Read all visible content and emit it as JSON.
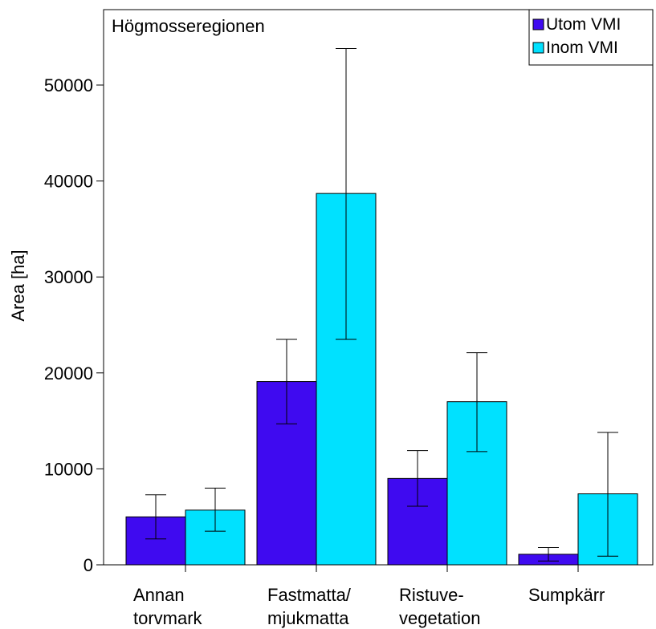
{
  "chart_data": {
    "type": "bar",
    "title": "Högmosseregionen",
    "ylabel": "Area [ha]",
    "xlabel": "",
    "ylim": [
      0,
      58000
    ],
    "yticks": [
      0,
      10000,
      20000,
      30000,
      40000,
      50000
    ],
    "ytick_labels": [
      "0",
      "10000",
      "20000",
      "30000",
      "40000",
      "50000"
    ],
    "categories": [
      [
        "Annan",
        "torvmark"
      ],
      [
        "Fastmatta/",
        "mjukmatta"
      ],
      [
        "Ristuve-",
        "vegetation"
      ],
      [
        "Sumpkärr",
        ""
      ]
    ],
    "series": [
      {
        "name": "Utom VMI",
        "color": "#3f0af0",
        "values": [
          5000,
          19100,
          9000,
          1100
        ],
        "error_low": [
          2700,
          14700,
          6100,
          400
        ],
        "error_high": [
          7300,
          23500,
          11900,
          1800
        ]
      },
      {
        "name": "Inom VMI",
        "color": "#00e1ff",
        "values": [
          5700,
          38700,
          17000,
          7400
        ],
        "error_low": [
          3500,
          23500,
          11800,
          900
        ],
        "error_high": [
          8000,
          53800,
          22100,
          13800
        ]
      }
    ],
    "legend_position": "top-right",
    "grid": false
  }
}
